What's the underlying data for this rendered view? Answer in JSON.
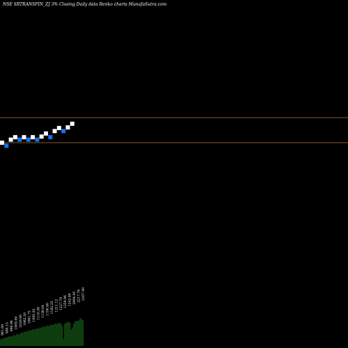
{
  "chart_data": {
    "type": "renko",
    "title": "NSE SRTRANSFIN_ZJ 3% Closing Daily data  Renko  charts MunafaSutra.com",
    "colors": {
      "background": "#000000",
      "up_brick": "#ffffff",
      "down_brick": "#1c6fe8",
      "reference_line": "#b4783c",
      "volume": "#0f3d0f",
      "text": "#ffffff"
    },
    "reference_lines": [
      2290,
      2085
    ],
    "bricks": [
      {
        "dir": "up",
        "value": 2085
      },
      {
        "dir": "down",
        "value": 2060
      },
      {
        "dir": "up",
        "value": 2110
      },
      {
        "dir": "up",
        "value": 2130
      },
      {
        "dir": "down",
        "value": 2110
      },
      {
        "dir": "up",
        "value": 2130
      },
      {
        "dir": "down",
        "value": 2110
      },
      {
        "dir": "up",
        "value": 2130
      },
      {
        "dir": "down",
        "value": 2110
      },
      {
        "dir": "up",
        "value": 2135
      },
      {
        "dir": "up",
        "value": 2160
      },
      {
        "dir": "down",
        "value": 2130
      },
      {
        "dir": "up",
        "value": 2180
      },
      {
        "dir": "up",
        "value": 2205
      },
      {
        "dir": "down",
        "value": 2180
      },
      {
        "dir": "up",
        "value": 2210
      },
      {
        "dir": "up",
        "value": 2240
      }
    ],
    "volume_labels": [
      "961.09",
      "980.15",
      "996.96",
      "1009.09",
      "1029.00",
      "1062.20",
      "1081.75",
      "1095.45",
      "1110.30",
      "1138.04",
      "1156.46",
      "1182.25",
      "1211.12",
      "1227.79",
      "1259.96",
      "1242.80",
      "2004.95",
      "2217.76",
      "2207.90"
    ],
    "volumes": [
      28,
      32,
      30,
      35,
      38,
      36,
      40,
      42,
      39,
      44,
      47,
      43,
      50,
      52,
      48,
      54,
      58,
      56,
      62,
      60,
      64,
      63,
      68,
      66,
      70,
      72,
      69,
      74,
      76,
      73,
      80,
      78,
      82,
      84,
      81,
      86,
      88,
      85,
      90,
      92,
      89,
      94,
      96,
      93,
      98,
      100,
      97,
      88,
      30,
      95,
      99,
      102,
      104,
      100,
      70,
      80,
      96,
      105,
      108,
      106,
      110,
      120,
      115,
      110
    ]
  }
}
